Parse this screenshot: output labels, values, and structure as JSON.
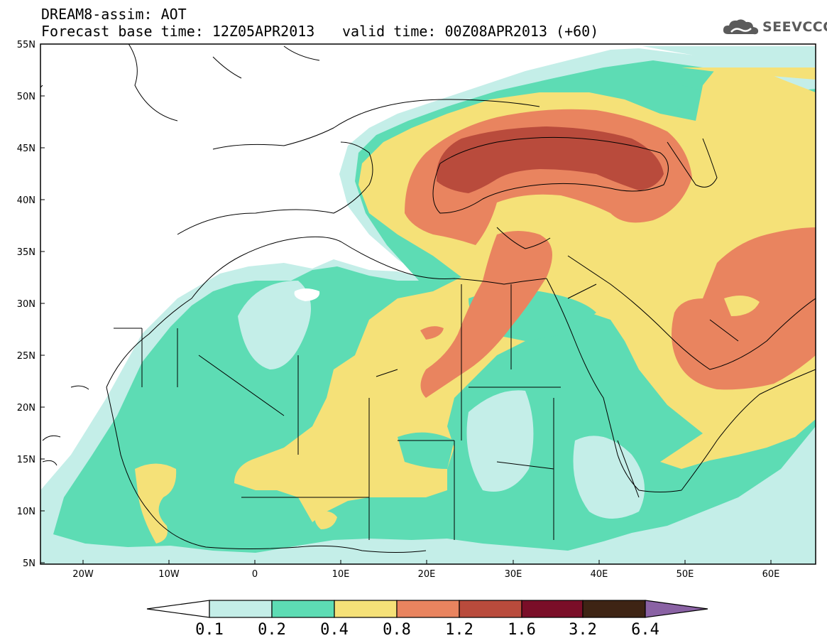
{
  "header": {
    "title": "DREAM8-assim: AOT",
    "base_time": "Forecast base time: 12Z05APR2013",
    "valid_time": "valid time: 00Z08APR2013 (+60)",
    "logo_text": "SEEVCCC"
  },
  "map_axes": {
    "lat_labels": [
      "55N",
      "50N",
      "45N",
      "40N",
      "35N",
      "30N",
      "25N",
      "20N",
      "15N",
      "10N",
      "5N"
    ],
    "lon_labels": [
      "20W",
      "10W",
      "0",
      "10E",
      "20E",
      "30E",
      "40E",
      "50E",
      "60E"
    ]
  },
  "colorbar": {
    "labels": [
      "0.1",
      "0.2",
      "0.4",
      "0.8",
      "1.2",
      "1.6",
      "3.2",
      "6.4"
    ],
    "colors": [
      "#ffffff",
      "#c4eee8",
      "#5ddcb4",
      "#f5e178",
      "#e9845f",
      "#b94b3c",
      "#7a0e28",
      "#3e2414",
      "#8a62a4"
    ]
  }
}
